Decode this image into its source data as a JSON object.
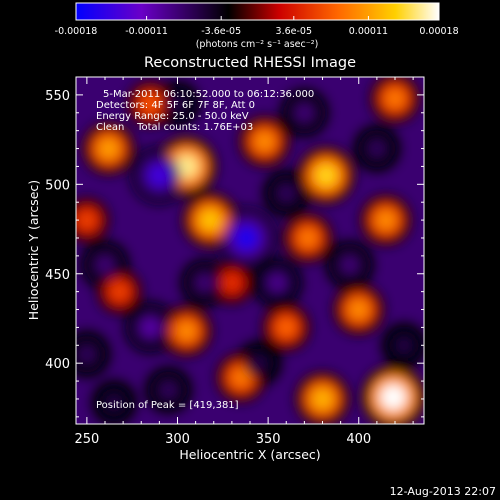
{
  "chart_data": {
    "type": "heatmap",
    "title": "Reconstructed RHESSI Image",
    "xlabel": "Heliocentric X (arcsec)",
    "ylabel": "Heliocentric Y (arcsec)",
    "xlim": [
      244,
      436
    ],
    "ylim": [
      366,
      560
    ],
    "x_ticks": [
      250,
      300,
      350,
      400
    ],
    "y_ticks": [
      400,
      450,
      500,
      550
    ],
    "colorbar": {
      "range": [
        -0.00018,
        0.00018
      ],
      "unit": "(photons cm⁻² s⁻¹ asec⁻²)",
      "tick_labels": [
        "-0.00018",
        "-0.00011",
        "-3.6e-05",
        "3.6e-05",
        "0.00011",
        "0.00018"
      ],
      "tick_values": [
        -0.00018,
        -0.00011,
        -3.6e-05,
        3.6e-05,
        0.00011,
        0.00018
      ],
      "colormap": [
        "#0000ff",
        "#6a00c8",
        "#000000",
        "#cc0000",
        "#ff6600",
        "#ffd000",
        "#ffffff"
      ]
    },
    "annotations": {
      "time_range": "5-Mar-2011 06:10:52.000 to 06:12:36.000",
      "detectors": "Detectors: 4F 5F 6F 7F 8F, Att 0",
      "energy": "Energy Range: 25.0 - 50.0 keV",
      "clean": "Clean    Total counts: 1.76E+03",
      "peak": "Position of Peak = [419,381]"
    },
    "peak": [
      419,
      381
    ],
    "blobs": [
      {
        "x": 262,
        "y": 520,
        "v": 0.00011
      },
      {
        "x": 305,
        "y": 510,
        "v": 0.00016
      },
      {
        "x": 318,
        "y": 480,
        "v": 0.00013
      },
      {
        "x": 348,
        "y": 524,
        "v": 0.0001
      },
      {
        "x": 382,
        "y": 505,
        "v": 0.00014
      },
      {
        "x": 372,
        "y": 470,
        "v": 9e-05
      },
      {
        "x": 415,
        "y": 480,
        "v": 0.0001
      },
      {
        "x": 420,
        "y": 548,
        "v": 9e-05
      },
      {
        "x": 268,
        "y": 440,
        "v": 6e-05
      },
      {
        "x": 305,
        "y": 418,
        "v": 0.0001
      },
      {
        "x": 335,
        "y": 392,
        "v": 9e-05
      },
      {
        "x": 360,
        "y": 420,
        "v": 8e-05
      },
      {
        "x": 400,
        "y": 430,
        "v": 0.0001
      },
      {
        "x": 380,
        "y": 380,
        "v": 0.00012
      },
      {
        "x": 419,
        "y": 381,
        "v": 0.00018
      },
      {
        "x": 285,
        "y": 545,
        "v": 7e-05
      },
      {
        "x": 250,
        "y": 480,
        "v": 6e-05
      },
      {
        "x": 330,
        "y": 445,
        "v": 5e-05
      },
      {
        "x": 290,
        "y": 505,
        "v": -0.00014
      },
      {
        "x": 338,
        "y": 470,
        "v": -0.00016
      },
      {
        "x": 260,
        "y": 455,
        "v": -8e-05
      },
      {
        "x": 285,
        "y": 420,
        "v": -0.0001
      },
      {
        "x": 315,
        "y": 445,
        "v": -8e-05
      },
      {
        "x": 355,
        "y": 445,
        "v": -9e-05
      },
      {
        "x": 395,
        "y": 455,
        "v": -8e-05
      },
      {
        "x": 345,
        "y": 400,
        "v": -6e-05
      },
      {
        "x": 295,
        "y": 385,
        "v": -7e-05
      },
      {
        "x": 265,
        "y": 378,
        "v": -6e-05
      },
      {
        "x": 370,
        "y": 540,
        "v": -8e-05
      },
      {
        "x": 410,
        "y": 520,
        "v": -7e-05
      },
      {
        "x": 300,
        "y": 545,
        "v": -6e-05
      },
      {
        "x": 425,
        "y": 410,
        "v": -6e-05
      },
      {
        "x": 250,
        "y": 405,
        "v": -7e-05
      },
      {
        "x": 360,
        "y": 495,
        "v": -7e-05
      }
    ]
  },
  "footer": {
    "date": "12-Aug-2013 22:07"
  }
}
